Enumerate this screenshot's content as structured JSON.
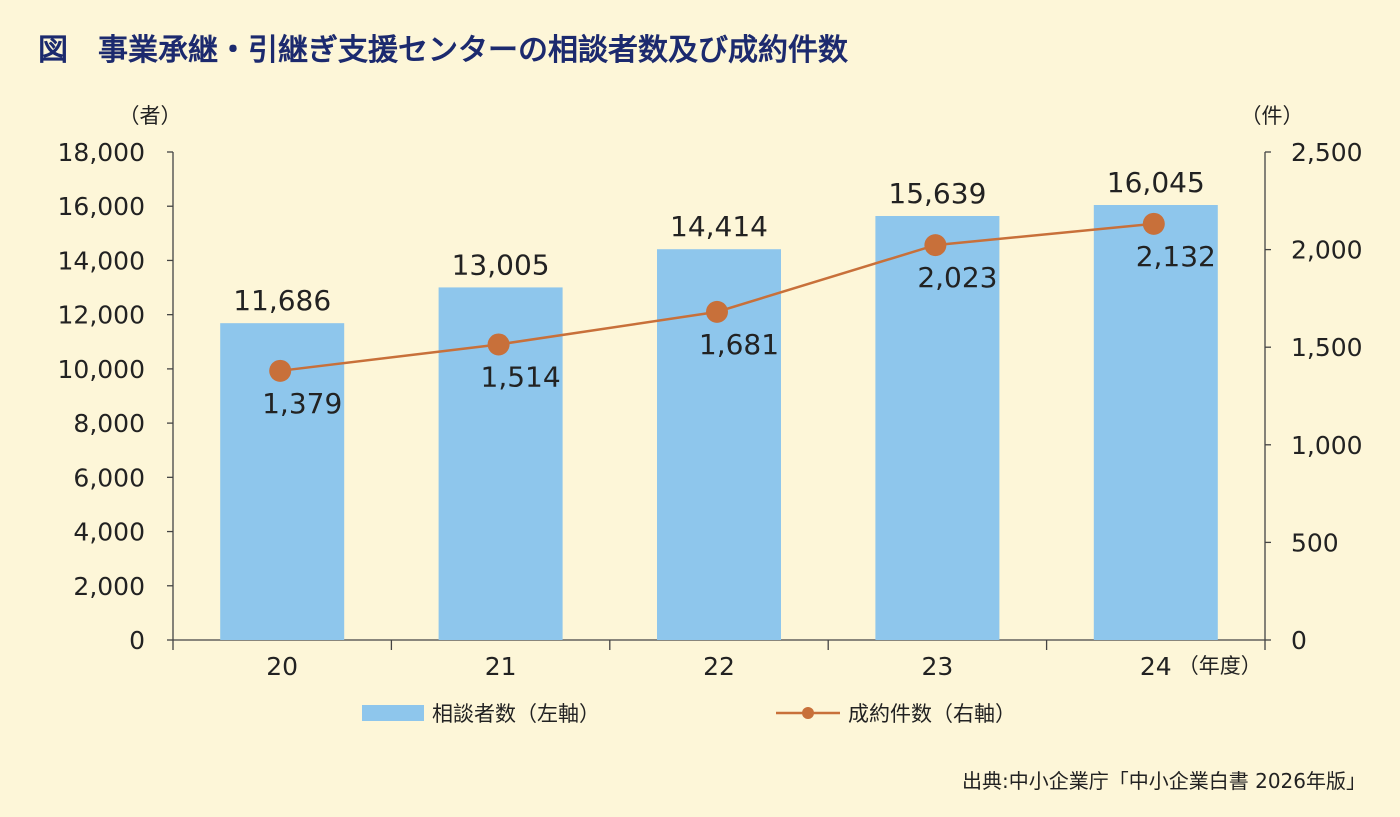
{
  "title": "図　事業承継・引継ぎ支援センターの相談者数及び成約件数",
  "source": "出典:中小企業庁「中小企業白書 2026年版」",
  "colors": {
    "bar": "#8ec6ec",
    "line": "#c8703a",
    "title": "#1c2a6e",
    "background": "#fdf6d8"
  },
  "chart_data": {
    "type": "bar+line",
    "categories": [
      "20",
      "21",
      "22",
      "23",
      "24"
    ],
    "x_unit": "（年度）",
    "y_left": {
      "unit": "（者）",
      "range": [
        0,
        18000
      ],
      "ticks": [
        "0",
        "2,000",
        "4,000",
        "6,000",
        "8,000",
        "10,000",
        "12,000",
        "14,000",
        "16,000",
        "18,000"
      ]
    },
    "y_right": {
      "unit": "（件）",
      "range": [
        0,
        2500
      ],
      "ticks": [
        "0",
        "500",
        "1,000",
        "1,500",
        "2,000",
        "2,500"
      ]
    },
    "series": [
      {
        "name": "相談者数（左軸）",
        "type": "bar",
        "axis": "left",
        "values": [
          11686,
          13005,
          14414,
          15639,
          16045
        ],
        "labels": [
          "11,686",
          "13,005",
          "14,414",
          "15,639",
          "16,045"
        ]
      },
      {
        "name": "成約件数（右軸）",
        "type": "line",
        "axis": "right",
        "values": [
          1379,
          1514,
          1681,
          2023,
          2132
        ],
        "labels": [
          "1,379",
          "1,514",
          "1,681",
          "2,023",
          "2,132"
        ]
      }
    ],
    "legend": "bottom-center",
    "grid": false
  }
}
